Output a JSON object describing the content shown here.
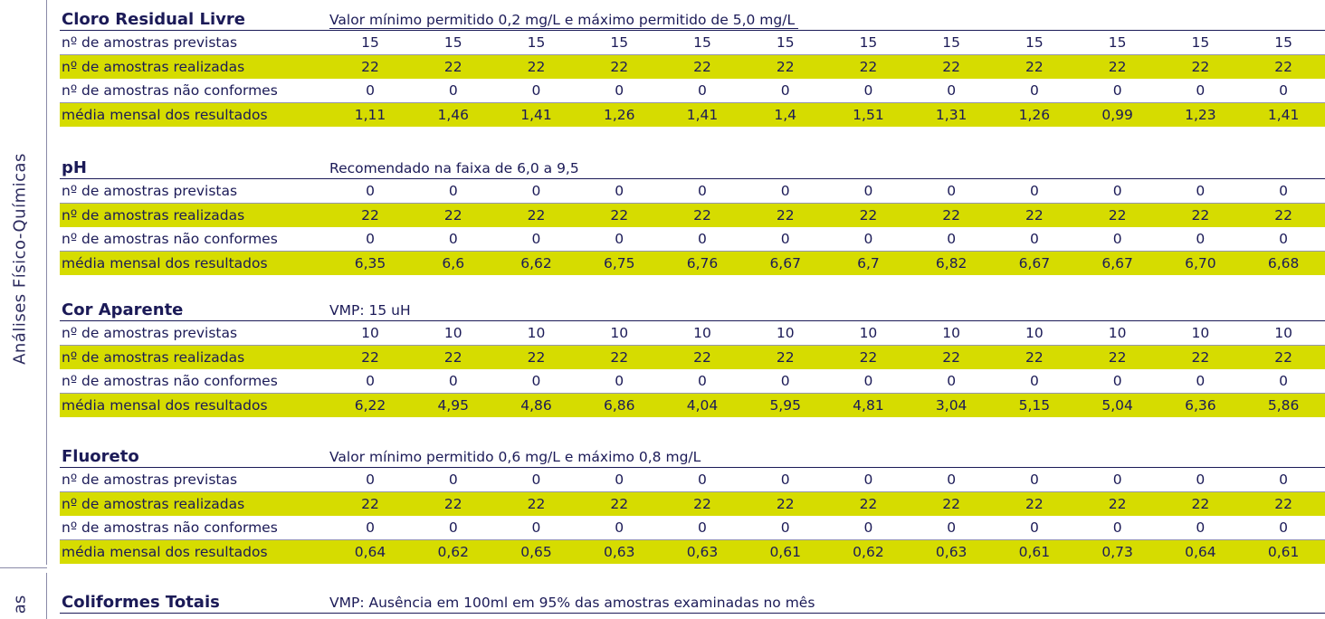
{
  "side_labels": {
    "main": "Análises Físico-Químicas",
    "next": "as"
  },
  "row_labels": {
    "previstas": "nº de amostras previstas",
    "realizadas": "nº de amostras  realizadas",
    "nao_conformes": "nº de amostras não conformes",
    "media": "média mensal dos resultados"
  },
  "sections": [
    {
      "title": "Cloro Residual Livre",
      "note": "Valor mínimo permitido 0,2 mg/L e máximo permitido de 5,0 mg/L",
      "previstas": [
        "15",
        "15",
        "15",
        "15",
        "15",
        "15",
        "15",
        "15",
        "15",
        "15",
        "15",
        "15"
      ],
      "realizadas": [
        "22",
        "22",
        "22",
        "22",
        "22",
        "22",
        "22",
        "22",
        "22",
        "22",
        "22",
        "22"
      ],
      "nao_conformes": [
        "0",
        "0",
        "0",
        "0",
        "0",
        "0",
        "0",
        "0",
        "0",
        "0",
        "0",
        "0"
      ],
      "media": [
        "1,11",
        "1,46",
        "1,41",
        "1,26",
        "1,41",
        "1,4",
        "1,51",
        "1,31",
        "1,26",
        "0,99",
        "1,23",
        "1,41"
      ]
    },
    {
      "title": "pH",
      "note": "Recomendado na faixa de 6,0 a 9,5",
      "previstas": [
        "0",
        "0",
        "0",
        "0",
        "0",
        "0",
        "0",
        "0",
        "0",
        "0",
        "0",
        "0"
      ],
      "realizadas": [
        "22",
        "22",
        "22",
        "22",
        "22",
        "22",
        "22",
        "22",
        "22",
        "22",
        "22",
        "22"
      ],
      "nao_conformes": [
        "0",
        "0",
        "0",
        "0",
        "0",
        "0",
        "0",
        "0",
        "0",
        "0",
        "0",
        "0"
      ],
      "media": [
        "6,35",
        "6,6",
        "6,62",
        "6,75",
        "6,76",
        "6,67",
        "6,7",
        "6,82",
        "6,67",
        "6,67",
        "6,70",
        "6,68"
      ]
    },
    {
      "title": "Cor Aparente",
      "note": "VMP: 15 uH",
      "previstas": [
        "10",
        "10",
        "10",
        "10",
        "10",
        "10",
        "10",
        "10",
        "10",
        "10",
        "10",
        "10"
      ],
      "realizadas": [
        "22",
        "22",
        "22",
        "22",
        "22",
        "22",
        "22",
        "22",
        "22",
        "22",
        "22",
        "22"
      ],
      "nao_conformes": [
        "0",
        "0",
        "0",
        "0",
        "0",
        "0",
        "0",
        "0",
        "0",
        "0",
        "0",
        "0"
      ],
      "media": [
        "6,22",
        "4,95",
        "4,86",
        "6,86",
        "4,04",
        "5,95",
        "4,81",
        "3,04",
        "5,15",
        "5,04",
        "6,36",
        "5,86"
      ]
    },
    {
      "title": "Fluoreto",
      "note": "Valor mínimo permitido 0,6 mg/L e máximo 0,8 mg/L",
      "previstas": [
        "0",
        "0",
        "0",
        "0",
        "0",
        "0",
        "0",
        "0",
        "0",
        "0",
        "0",
        "0"
      ],
      "realizadas": [
        "22",
        "22",
        "22",
        "22",
        "22",
        "22",
        "22",
        "22",
        "22",
        "22",
        "22",
        "22"
      ],
      "nao_conformes": [
        "0",
        "0",
        "0",
        "0",
        "0",
        "0",
        "0",
        "0",
        "0",
        "0",
        "0",
        "0"
      ],
      "media": [
        "0,64",
        "0,62",
        "0,65",
        "0,63",
        "0,63",
        "0,61",
        "0,62",
        "0,63",
        "0,61",
        "0,73",
        "0,64",
        "0,61"
      ]
    },
    {
      "title": "Coliformes Totais",
      "note": "VMP: Ausência em 100ml em 95% das amostras examinadas no mês"
    }
  ]
}
